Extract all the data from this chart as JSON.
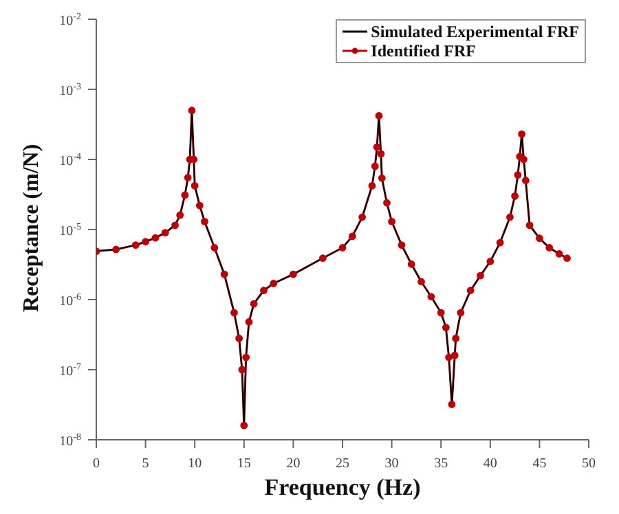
{
  "chart_data": {
    "type": "line",
    "xlabel": "Frequency (Hz)",
    "ylabel": "Receptance (m/N)",
    "x": [
      0,
      2,
      4,
      5,
      6,
      7,
      8,
      8.5,
      9,
      9.3,
      9.5,
      9.7,
      9.9,
      10,
      10.5,
      11,
      12,
      13,
      14,
      14.5,
      14.8,
      15,
      15.2,
      15.5,
      16,
      17,
      18,
      20,
      23,
      25,
      26,
      27,
      28,
      28.3,
      28.5,
      28.7,
      28.9,
      29,
      29.5,
      30,
      31,
      32,
      33,
      34,
      35,
      35.5,
      35.8,
      36.1,
      36.4,
      36.5,
      37,
      38,
      39,
      40,
      41,
      42,
      42.5,
      42.8,
      43,
      43.2,
      43.4,
      43.6,
      44,
      45,
      46,
      47,
      47.8
    ],
    "series": [
      {
        "name": "Simulated Experimental FRF",
        "color": "#000000",
        "marker": "none",
        "values": [
          4.9e-06,
          5.2e-06,
          6e-06,
          6.7e-06,
          7.6e-06,
          9e-06,
          1.15e-05,
          1.6e-05,
          3.1e-05,
          5.5e-05,
          0.0001,
          0.0005,
          0.0001,
          4.2e-05,
          2.2e-05,
          1.3e-05,
          5.5e-06,
          2.3e-06,
          6.5e-07,
          2.8e-07,
          1e-07,
          1.6e-08,
          1.5e-07,
          4.8e-07,
          8.7e-07,
          1.35e-06,
          1.7e-06,
          2.3e-06,
          3.9e-06,
          5.5e-06,
          8e-06,
          1.5e-05,
          4.2e-05,
          8e-05,
          0.00015,
          0.00042,
          0.00012,
          5.4e-05,
          2.4e-05,
          1.3e-05,
          6e-06,
          3.2e-06,
          1.8e-06,
          1.1e-06,
          6.5e-07,
          4e-07,
          1.5e-07,
          3.2e-08,
          1.6e-07,
          2.8e-07,
          6.5e-07,
          1.35e-06,
          2.2e-06,
          3.5e-06,
          6.5e-06,
          1.5e-05,
          3e-05,
          6e-05,
          0.00011,
          0.00023,
          0.0001,
          5e-05,
          1.15e-05,
          7.5e-06,
          5.5e-06,
          4.5e-06,
          3.9e-06
        ]
      },
      {
        "name": "Identified FRF",
        "color": "#c00000",
        "marker": "circle",
        "values": [
          4.9e-06,
          5.2e-06,
          6e-06,
          6.7e-06,
          7.6e-06,
          9e-06,
          1.15e-05,
          1.6e-05,
          3.1e-05,
          5.5e-05,
          0.0001,
          0.0005,
          0.0001,
          4.2e-05,
          2.2e-05,
          1.3e-05,
          5.5e-06,
          2.3e-06,
          6.5e-07,
          2.8e-07,
          1e-07,
          1.6e-08,
          1.5e-07,
          4.8e-07,
          8.7e-07,
          1.35e-06,
          1.7e-06,
          2.3e-06,
          3.9e-06,
          5.5e-06,
          8e-06,
          1.5e-05,
          4.2e-05,
          8e-05,
          0.00015,
          0.00042,
          0.00012,
          5.4e-05,
          2.4e-05,
          1.3e-05,
          6e-06,
          3.2e-06,
          1.8e-06,
          1.1e-06,
          6.5e-07,
          4e-07,
          1.5e-07,
          3.2e-08,
          1.6e-07,
          2.8e-07,
          6.5e-07,
          1.35e-06,
          2.2e-06,
          3.5e-06,
          6.5e-06,
          1.5e-05,
          3e-05,
          6e-05,
          0.00011,
          0.00023,
          0.0001,
          5e-05,
          1.15e-05,
          7.5e-06,
          5.5e-06,
          4.5e-06,
          3.9e-06
        ]
      }
    ],
    "xlim": [
      0,
      50
    ],
    "xticks": [
      0,
      5,
      10,
      15,
      20,
      25,
      30,
      35,
      40,
      45,
      50
    ],
    "ylim": [
      1e-08,
      0.01
    ],
    "log": true,
    "yticks": [
      {
        "value": 1e-08,
        "label": "10$^{-8}$"
      },
      {
        "value": 1e-07,
        "label": "10$^{-7}$"
      },
      {
        "value": 1e-06,
        "label": "10$^{-6}$"
      },
      {
        "value": 1e-05,
        "label": "10$^{-5}$"
      },
      {
        "value": 0.0001,
        "label": "10$^{-4}$"
      },
      {
        "value": 0.001,
        "label": "10$^{-3}$"
      },
      {
        "value": 0.01,
        "label": "10$^{-2}$"
      }
    ],
    "grid": false,
    "legend": "top right"
  }
}
